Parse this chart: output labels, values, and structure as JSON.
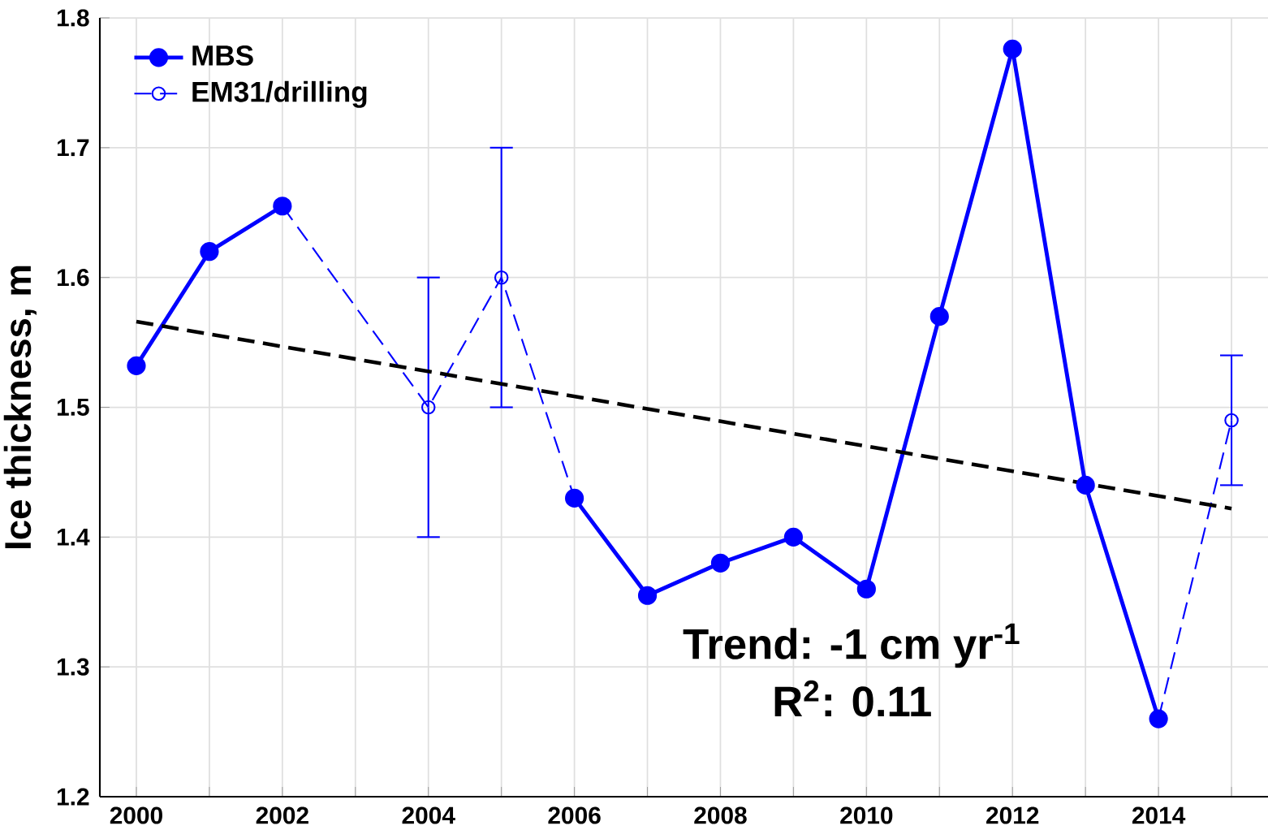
{
  "chart_data": {
    "type": "line",
    "ylabel": "Ice thickness, m",
    "annotations": [
      "**Trend: -1 cm yr$^{-1}$**",
      "**R$^{2}$: 0.11**"
    ],
    "series": [
      {
        "name": "MBS",
        "color": "#0000ff",
        "marker": "circle",
        "line_style": "solid",
        "x": [
          2000,
          2001,
          2002,
          2003,
          2004,
          2005,
          2006,
          2007,
          2008,
          2009,
          2010,
          2011,
          2012,
          2013,
          2014
        ],
        "values": [
          1.532,
          1.62,
          1.655,
          null,
          null,
          null,
          1.43,
          1.355,
          1.38,
          1.4,
          1.36,
          1.57,
          1.776,
          1.44,
          1.26
        ]
      },
      {
        "name": "EM31/drilling",
        "color": "#0000ff",
        "marker": "circle",
        "line_style": "dashed",
        "x": [
          2002,
          2004,
          2005,
          2006,
          2010,
          2014,
          2015
        ],
        "values": [
          1.655,
          1.5,
          1.6,
          1.43,
          null,
          1.26,
          1.49
        ],
        "errors": [
          null,
          0.1,
          0.1,
          null,
          null,
          null,
          0.05
        ]
      },
      {
        "type": "line",
        "color": "#000000",
        "marker": "none",
        "line_style": "dashed",
        "x": [
          2000,
          2015
        ],
        "values": [
          1.566,
          1.422
        ]
      }
    ],
    "xlim": [
      1999.5,
      2015.5
    ],
    "xticks": [
      2000,
      {
        "value": 2001,
        "label": null
      },
      2002,
      {
        "value": 2003,
        "label": null
      },
      2004,
      {
        "value": 2005,
        "label": null
      },
      2006,
      {
        "value": 2007,
        "label": null
      },
      2008,
      {
        "value": 2009,
        "label": null
      },
      2010,
      {
        "value": 2011,
        "label": null
      },
      2012,
      {
        "value": 2013,
        "label": null
      },
      2014,
      {
        "value": 2015,
        "label": null
      }
    ],
    "ylim": [
      1.2,
      1.8
    ],
    "yticks": [
      1.2,
      1.3,
      1.4,
      1.5,
      1.6,
      1.7,
      1.8
    ],
    "grid": true,
    "legend": "top left"
  }
}
